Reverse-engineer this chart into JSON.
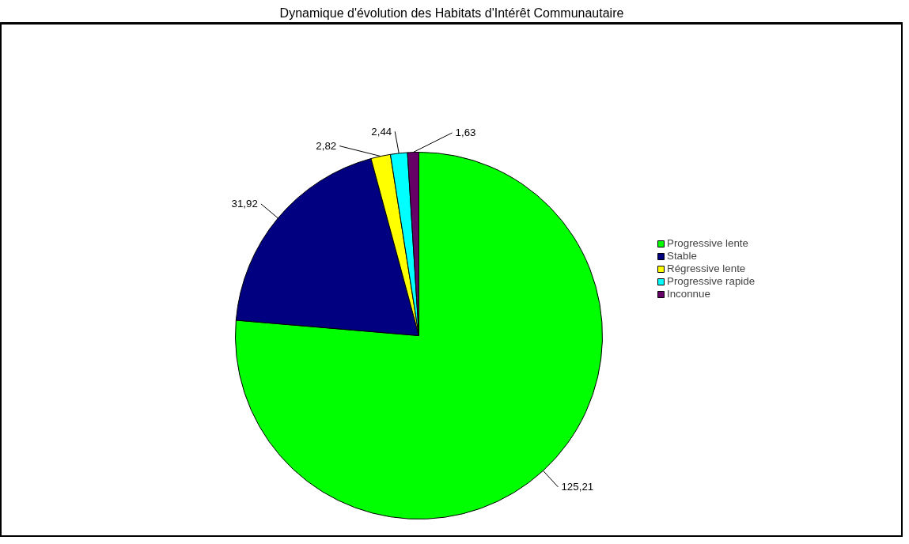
{
  "chart_data": {
    "type": "pie",
    "title": "Dynamique d'évolution des Habitats d'Intérêt Communautaire",
    "categories": [
      "Progressive lente",
      "Stable",
      "Régressive lente",
      "Progressive rapide",
      "Inconnue"
    ],
    "values": [
      125.21,
      31.92,
      2.82,
      2.44,
      1.63
    ],
    "colors": [
      "#00ff00",
      "#000080",
      "#ffff00",
      "#00ffff",
      "#660066"
    ],
    "value_labels": [
      "125,21",
      "31,92",
      "2,82",
      "2,44",
      "1,63"
    ],
    "legend": "right"
  }
}
